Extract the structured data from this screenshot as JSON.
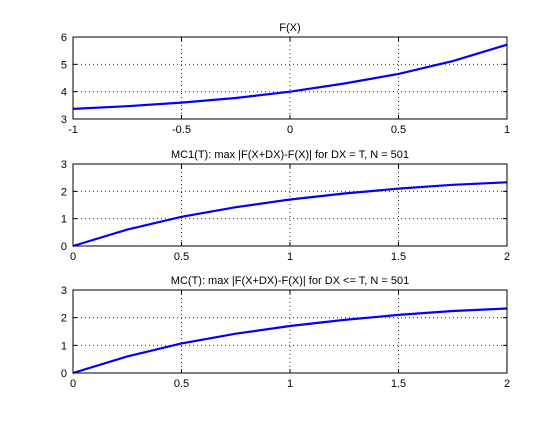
{
  "chart_data": [
    {
      "type": "line",
      "title": "F(X)",
      "xlim": [
        -1,
        1
      ],
      "ylim": [
        3,
        6
      ],
      "xticks": [
        -1,
        -0.5,
        0,
        0.5,
        1
      ],
      "xtick_labels": [
        "-1",
        "-0.5",
        "0",
        "0.5",
        "1"
      ],
      "yticks": [
        3,
        4,
        5,
        6
      ],
      "ytick_labels": [
        "3",
        "4",
        "5",
        "6"
      ],
      "grid": true,
      "series": [
        {
          "color": "#0000ff",
          "x": [
            -1,
            -0.75,
            -0.5,
            -0.25,
            0,
            0.25,
            0.5,
            0.75,
            1
          ],
          "y": [
            3.37,
            3.47,
            3.6,
            3.77,
            4.0,
            4.3,
            4.65,
            5.12,
            5.72
          ]
        }
      ]
    },
    {
      "type": "line",
      "title": "MC1(T): max |F(X+DX)-F(X)| for DX = T, N = 501",
      "xlim": [
        0,
        2
      ],
      "ylim": [
        0,
        3
      ],
      "xticks": [
        0,
        0.5,
        1,
        1.5,
        2
      ],
      "xtick_labels": [
        "0",
        "0.5",
        "1",
        "1.5",
        "2"
      ],
      "yticks": [
        0,
        1,
        2,
        3
      ],
      "ytick_labels": [
        "0",
        "1",
        "2",
        "3"
      ],
      "grid": true,
      "series": [
        {
          "color": "#0000ff",
          "x": [
            0,
            0.25,
            0.5,
            0.75,
            1,
            1.25,
            1.5,
            1.75,
            2
          ],
          "y": [
            0,
            0.6,
            1.07,
            1.42,
            1.7,
            1.92,
            2.1,
            2.24,
            2.33
          ]
        }
      ]
    },
    {
      "type": "line",
      "title": "MC(T): max |F(X+DX)-F(X)| for DX <= T, N = 501",
      "xlim": [
        0,
        2
      ],
      "ylim": [
        0,
        3
      ],
      "xticks": [
        0,
        0.5,
        1,
        1.5,
        2
      ],
      "xtick_labels": [
        "0",
        "0.5",
        "1",
        "1.5",
        "2"
      ],
      "yticks": [
        0,
        1,
        2,
        3
      ],
      "ytick_labels": [
        "0",
        "1",
        "2",
        "3"
      ],
      "grid": true,
      "series": [
        {
          "color": "#0000ff",
          "x": [
            0,
            0.25,
            0.5,
            0.75,
            1,
            1.25,
            1.5,
            1.75,
            2
          ],
          "y": [
            0,
            0.6,
            1.07,
            1.42,
            1.7,
            1.92,
            2.1,
            2.24,
            2.33
          ]
        }
      ]
    }
  ]
}
